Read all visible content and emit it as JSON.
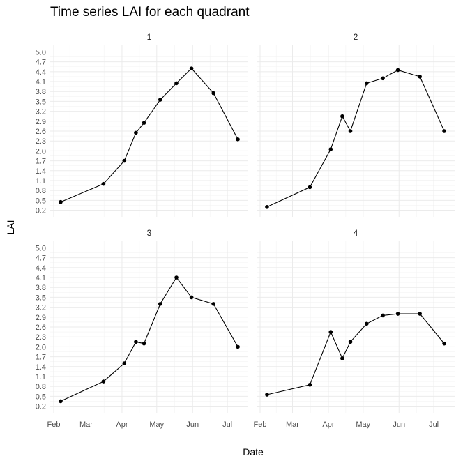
{
  "chart_data": {
    "type": "line",
    "title": "Time series LAI for each quadrant",
    "xlabel": "Date",
    "ylabel": "LAI",
    "x_ticks": [
      "Feb",
      "Mar",
      "Apr",
      "May",
      "Jun",
      "Jul"
    ],
    "y_ticks": [
      "0.2",
      "0.5",
      "0.8",
      "1.1",
      "1.4",
      "1.7",
      "2.0",
      "2.3",
      "2.6",
      "2.9",
      "3.2",
      "3.5",
      "3.8",
      "4.1",
      "4.4",
      "4.7",
      "5.0"
    ],
    "ylim": [
      0.0,
      5.2
    ],
    "xlim": [
      "2023-01-29",
      "2023-07-19"
    ],
    "grid": true,
    "panels": [
      {
        "label": "1",
        "x": [
          "2023-02-07",
          "2023-03-16",
          "2023-04-03",
          "2023-04-13",
          "2023-04-20",
          "2023-05-04",
          "2023-05-18",
          "2023-05-31",
          "2023-06-19",
          "2023-07-10"
        ],
        "y": [
          0.45,
          1.0,
          1.7,
          2.55,
          2.85,
          3.55,
          4.05,
          4.5,
          3.75,
          2.35
        ]
      },
      {
        "label": "2",
        "x": [
          "2023-02-07",
          "2023-03-16",
          "2023-04-03",
          "2023-04-13",
          "2023-04-20",
          "2023-05-04",
          "2023-05-18",
          "2023-05-31",
          "2023-06-19",
          "2023-07-10"
        ],
        "y": [
          0.3,
          0.9,
          2.05,
          3.05,
          2.6,
          4.05,
          4.2,
          4.45,
          4.25,
          2.6
        ]
      },
      {
        "label": "3",
        "x": [
          "2023-02-07",
          "2023-03-16",
          "2023-04-03",
          "2023-04-13",
          "2023-04-20",
          "2023-05-04",
          "2023-05-18",
          "2023-05-31",
          "2023-06-19",
          "2023-07-10"
        ],
        "y": [
          0.35,
          0.95,
          1.5,
          2.15,
          2.1,
          3.3,
          4.1,
          3.5,
          3.3,
          2.0
        ]
      },
      {
        "label": "4",
        "x": [
          "2023-02-07",
          "2023-03-16",
          "2023-04-03",
          "2023-04-13",
          "2023-04-20",
          "2023-05-04",
          "2023-05-18",
          "2023-05-31",
          "2023-06-19",
          "2023-07-10"
        ],
        "y": [
          0.55,
          0.85,
          2.45,
          1.65,
          2.15,
          2.7,
          2.95,
          3.0,
          3.0,
          2.1
        ]
      }
    ]
  }
}
